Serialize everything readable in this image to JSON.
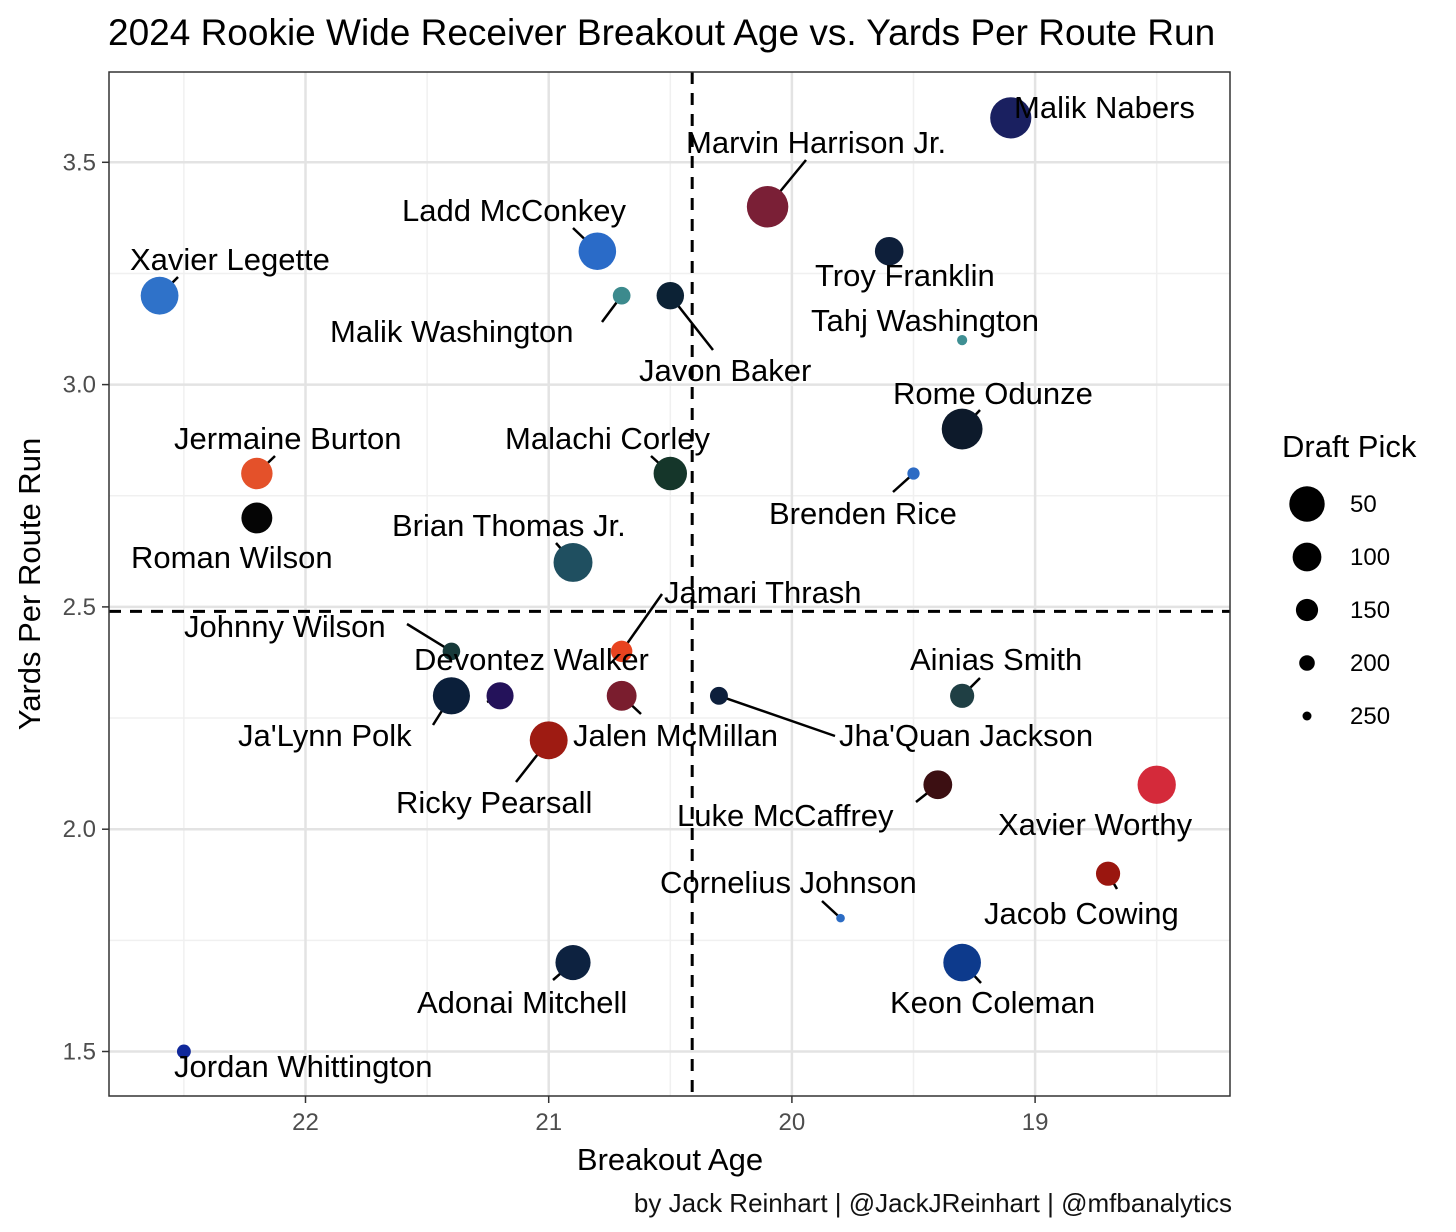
{
  "chart_data": {
    "type": "scatter",
    "title": "2024 Rookie Wide Receiver Breakout Age vs. Yards Per Route Run",
    "xlabel": "Breakout Age",
    "ylabel": "Yards Per Route Run",
    "x_axis_reversed": true,
    "xlim": [
      22.83,
      18.22
    ],
    "ylim": [
      1.4,
      3.7
    ],
    "x_ticks": [
      22,
      21,
      20,
      19
    ],
    "x_tick_labels": [
      "22",
      "21",
      "20",
      "19"
    ],
    "y_ticks": [
      1.5,
      2.0,
      2.5,
      3.0,
      3.5
    ],
    "y_tick_labels": [
      "1.5",
      "2.0",
      "2.5",
      "3.0",
      "3.5"
    ],
    "reference_lines": {
      "vertical_x": 20.41,
      "horizontal_y": 2.49,
      "style": "dashed"
    },
    "grid": true,
    "size_legend": {
      "title": "Draft Pick",
      "position": "right",
      "entries": [
        {
          "label": "50",
          "value": 50
        },
        {
          "label": "100",
          "value": 100
        },
        {
          "label": "150",
          "value": 150
        },
        {
          "label": "200",
          "value": 200
        },
        {
          "label": "250",
          "value": 250
        }
      ]
    },
    "points": [
      {
        "name": "Malik Nabers",
        "x": 19.1,
        "y": 3.6,
        "pick": 6,
        "color": "#1a2060"
      },
      {
        "name": "Marvin Harrison Jr.",
        "x": 20.1,
        "y": 3.4,
        "pick": 4,
        "color": "#7a1f36"
      },
      {
        "name": "Troy Franklin",
        "x": 19.6,
        "y": 3.3,
        "pick": 102,
        "color": "#0e1f3a"
      },
      {
        "name": "Ladd McConkey",
        "x": 20.8,
        "y": 3.3,
        "pick": 34,
        "color": "#2a6bc8"
      },
      {
        "name": "Xavier Legette",
        "x": 22.6,
        "y": 3.2,
        "pick": 32,
        "color": "#2f72c9"
      },
      {
        "name": "Malik Washington",
        "x": 20.7,
        "y": 3.2,
        "pick": 184,
        "color": "#3c8a8d"
      },
      {
        "name": "Javon Baker",
        "x": 20.5,
        "y": 3.2,
        "pick": 110,
        "color": "#0c2235"
      },
      {
        "name": "Tahj Washington",
        "x": 19.3,
        "y": 3.1,
        "pick": 241,
        "color": "#3f8f93"
      },
      {
        "name": "Rome Odunze",
        "x": 19.3,
        "y": 2.9,
        "pick": 9,
        "color": "#0d1a2b"
      },
      {
        "name": "Jermaine Burton",
        "x": 22.2,
        "y": 2.8,
        "pick": 80,
        "color": "#e4512a"
      },
      {
        "name": "Malachi Corley",
        "x": 20.5,
        "y": 2.8,
        "pick": 65,
        "color": "#15362a"
      },
      {
        "name": "Brenden Rice",
        "x": 19.5,
        "y": 2.8,
        "pick": 225,
        "color": "#2d6bc4"
      },
      {
        "name": "Roman Wilson",
        "x": 22.2,
        "y": 2.7,
        "pick": 84,
        "color": "#050505"
      },
      {
        "name": "Brian Thomas Jr.",
        "x": 20.9,
        "y": 2.6,
        "pick": 23,
        "color": "#1f4f60"
      },
      {
        "name": "Jamari Thrash",
        "x": 20.7,
        "y": 2.4,
        "pick": 156,
        "color": "#e8431f"
      },
      {
        "name": "Johnny Wilson",
        "x": 21.4,
        "y": 2.4,
        "pick": 185,
        "color": "#173a3a"
      },
      {
        "name": "Ja'Lynn Polk",
        "x": 21.4,
        "y": 2.3,
        "pick": 37,
        "color": "#0b1f3a"
      },
      {
        "name": "Devontez Walker",
        "x": 21.2,
        "y": 2.3,
        "pick": 113,
        "color": "#24125a"
      },
      {
        "name": "Jalen McMillan",
        "x": 20.7,
        "y": 2.3,
        "pick": 92,
        "color": "#7a1d2e"
      },
      {
        "name": "Jha'Quan Jackson",
        "x": 20.3,
        "y": 2.3,
        "pick": 182,
        "color": "#0d1f3c"
      },
      {
        "name": "Ainias Smith",
        "x": 19.3,
        "y": 2.3,
        "pick": 135,
        "color": "#1f3f44"
      },
      {
        "name": "Ricky Pearsall",
        "x": 21.0,
        "y": 2.2,
        "pick": 31,
        "color": "#9e1b12"
      },
      {
        "name": "Luke McCaffrey",
        "x": 19.4,
        "y": 2.1,
        "pick": 100,
        "color": "#3c0f12"
      },
      {
        "name": "Xavier Worthy",
        "x": 18.5,
        "y": 2.1,
        "pick": 28,
        "color": "#d42a3a"
      },
      {
        "name": "Jacob Cowing",
        "x": 18.7,
        "y": 1.9,
        "pick": 135,
        "color": "#9a160f"
      },
      {
        "name": "Cornelius Johnson",
        "x": 19.8,
        "y": 1.8,
        "pick": 253,
        "color": "#2c6cc4"
      },
      {
        "name": "Adonai Mitchell",
        "x": 20.9,
        "y": 1.7,
        "pick": 52,
        "color": "#0d2240"
      },
      {
        "name": "Keon Coleman",
        "x": 19.3,
        "y": 1.7,
        "pick": 33,
        "color": "#0d3a8c"
      },
      {
        "name": "Jordan Whittington",
        "x": 22.5,
        "y": 1.5,
        "pick": 213,
        "color": "#10289a"
      }
    ]
  },
  "credit": "by Jack Reinhart | @JackJReinhart | @mfbanalytics"
}
